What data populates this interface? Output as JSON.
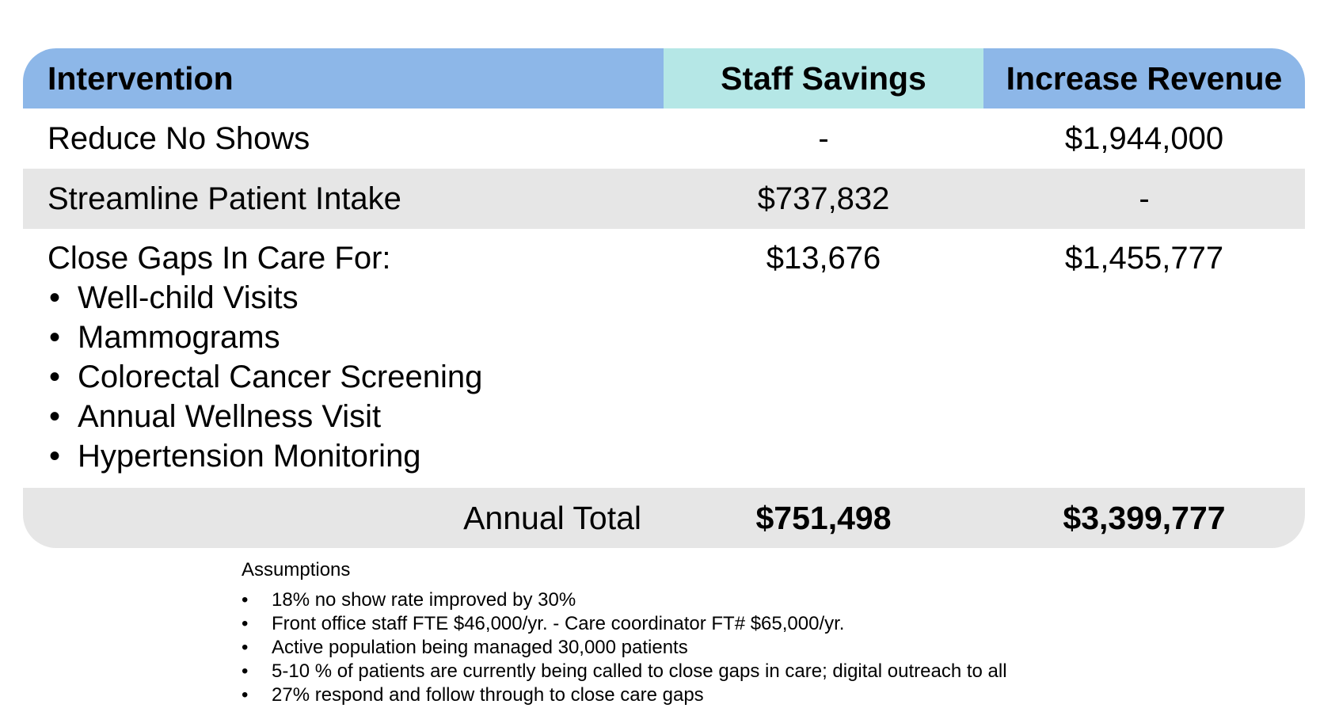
{
  "table": {
    "headers": {
      "intervention": "Intervention",
      "staff_savings": "Staff Savings",
      "increase_revenue": "Increase Revenue"
    },
    "rows": [
      {
        "intervention": "Reduce No Shows",
        "staff_savings": "-",
        "increase_revenue": "$1,944,000"
      },
      {
        "intervention": "Streamline Patient Intake",
        "staff_savings": "$737,832",
        "increase_revenue": "-"
      },
      {
        "intervention": "Close Gaps In Care For:",
        "sub_items": [
          "Well-child Visits",
          "Mammograms",
          "Colorectal Cancer Screening",
          "Annual Wellness Visit",
          "Hypertension Monitoring"
        ],
        "staff_savings": "$13,676",
        "increase_revenue": "$1,455,777"
      }
    ],
    "total": {
      "label": "Annual Total",
      "staff_savings": "$751,498",
      "increase_revenue": "$3,399,777"
    },
    "colors": {
      "header_blue": "#8db7e8",
      "header_teal": "#b5e7e6",
      "stripe_gray": "#e6e6e6"
    }
  },
  "bullet": "•",
  "assumptions": {
    "title": "Assumptions",
    "items": [
      "18% no show rate improved by 30%",
      "Front office staff FTE $46,000/yr. - Care coordinator FT# $65,000/yr.",
      "Active population being managed 30,000 patients",
      "5-10 % of patients are currently being called to close gaps in care; digital outreach to all",
      "27% respond and follow through to close care gaps"
    ]
  }
}
